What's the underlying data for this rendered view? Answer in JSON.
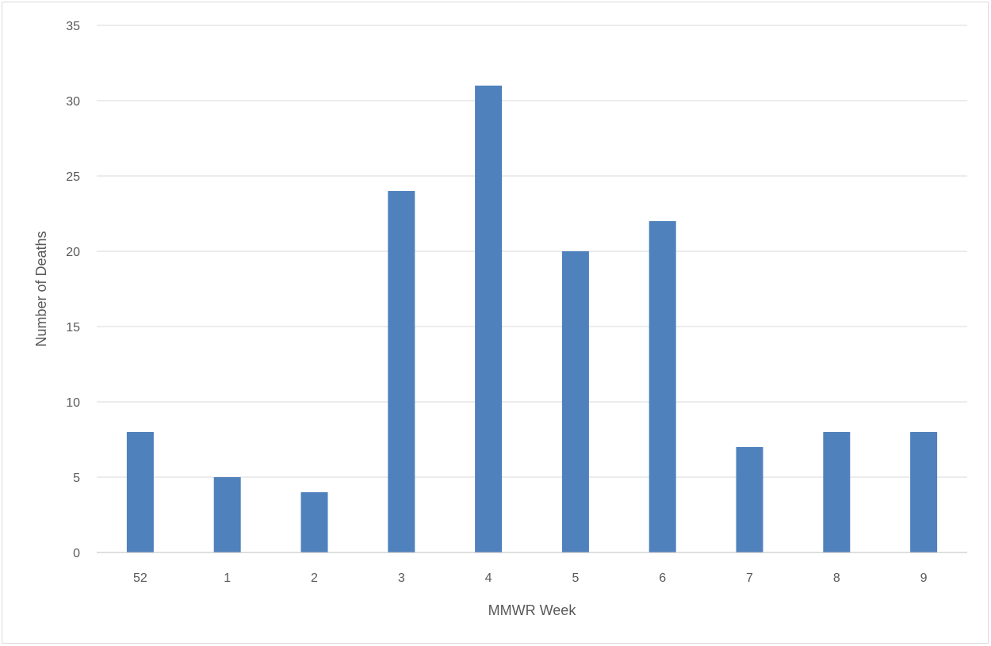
{
  "chart_data": {
    "type": "bar",
    "title": "",
    "xlabel": "MMWR Week",
    "ylabel": "Number of Deaths",
    "categories": [
      "52",
      "1",
      "2",
      "3",
      "4",
      "5",
      "6",
      "7",
      "8",
      "9"
    ],
    "series": [
      {
        "values": [
          8,
          5,
          4,
          24,
          31,
          20,
          22,
          7,
          8,
          8
        ]
      }
    ],
    "ylim": [
      0,
      35
    ],
    "yticks": [
      "0",
      "5",
      "10",
      "15",
      "20",
      "25",
      "30",
      "35"
    ],
    "grid": "horizontal",
    "legend": "none",
    "colors": {
      "bar": "#4f81bd",
      "grid": "#d9d9d9",
      "axis": "#bfbfbf",
      "text": "#595959"
    }
  }
}
